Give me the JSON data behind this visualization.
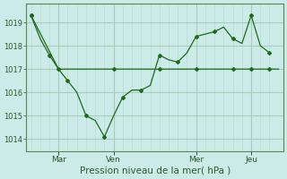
{
  "bg_color": "#cceae7",
  "grid_color_major": "#aaccbb",
  "grid_color_minor": "#bbddd5",
  "line_color": "#1a6b1a",
  "xlabel": "Pression niveau de la mer( hPa )",
  "ylim": [
    1013.5,
    1019.8
  ],
  "yticks": [
    1014,
    1015,
    1016,
    1017,
    1018,
    1019
  ],
  "xtick_labels": [
    "Mar",
    "Ven",
    "Mer",
    "Jeu"
  ],
  "xtick_positions": [
    3,
    9,
    18,
    24
  ],
  "major_vlines": [
    3,
    9,
    18,
    24
  ],
  "minor_vlines": [
    0,
    1,
    2,
    4,
    5,
    6,
    7,
    8,
    10,
    11,
    12,
    13,
    14,
    15,
    16,
    17,
    19,
    20,
    21,
    22,
    23,
    25,
    26
  ],
  "xmin": 0,
  "xmax": 27,
  "series1_x": [
    0,
    1,
    2,
    3,
    4,
    5,
    6,
    7,
    8,
    9,
    10,
    11,
    12,
    13,
    14,
    15,
    16,
    17,
    18,
    19,
    20,
    21,
    22,
    23,
    24,
    25,
    26
  ],
  "series1_y": [
    1019.3,
    1018.3,
    1017.6,
    1017.0,
    1016.5,
    1016.0,
    1015.0,
    1014.8,
    1014.1,
    1015.0,
    1015.8,
    1016.1,
    1016.1,
    1016.3,
    1017.6,
    1017.4,
    1017.3,
    1017.7,
    1018.4,
    1018.5,
    1018.6,
    1018.8,
    1018.3,
    1018.1,
    1019.3,
    1018.0,
    1017.7
  ],
  "series1_markers": [
    0,
    2,
    4,
    6,
    8,
    10,
    12,
    14,
    16,
    18,
    20,
    22,
    24,
    26
  ],
  "series2_x": [
    0,
    3,
    9,
    14,
    18,
    22,
    24,
    26,
    27
  ],
  "series2_y": [
    1019.3,
    1017.0,
    1017.0,
    1017.0,
    1017.0,
    1017.0,
    1017.0,
    1017.0,
    1017.0
  ],
  "series2_markers": [
    0,
    3,
    9,
    14,
    18,
    22,
    24,
    26
  ]
}
